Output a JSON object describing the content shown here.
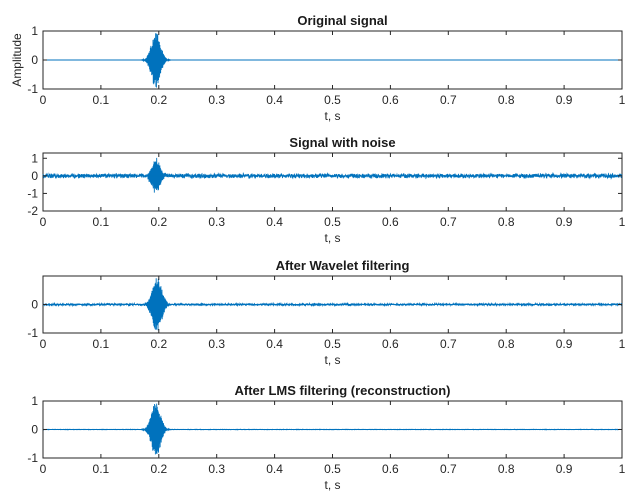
{
  "colors": {
    "signal": "#0072BD",
    "axes": "#262626",
    "background": "#ffffff"
  },
  "chart_data": [
    {
      "type": "line",
      "title": "Original signal",
      "xlabel": "t, s",
      "ylabel": "Amplitude",
      "xlim": [
        0,
        1
      ],
      "ylim": [
        -1,
        1
      ],
      "xticks": [
        "0",
        "0.1",
        "0.2",
        "0.3",
        "0.4",
        "0.5",
        "0.6",
        "0.7",
        "0.8",
        "0.9",
        "1"
      ],
      "yticks": [
        "1",
        "0",
        "-1"
      ],
      "ytick_values": [
        1,
        0,
        -1
      ],
      "burst": {
        "center": 0.195,
        "width": 0.016,
        "amplitude": 0.98
      },
      "noise_amplitude": 0.0
    },
    {
      "type": "line",
      "title": "Signal with noise",
      "xlabel": "t, s",
      "ylabel": "",
      "xlim": [
        0,
        1
      ],
      "ylim": [
        -2,
        1.3
      ],
      "xticks": [
        "0",
        "0.1",
        "0.2",
        "0.3",
        "0.4",
        "0.5",
        "0.6",
        "0.7",
        "0.8",
        "0.9",
        "1"
      ],
      "yticks": [
        "1",
        "0",
        "-1",
        "-2"
      ],
      "ytick_values": [
        1,
        0,
        -1,
        -2
      ],
      "burst": {
        "center": 0.195,
        "width": 0.016,
        "amplitude": 0.95
      },
      "noise_amplitude": 0.15
    },
    {
      "type": "line",
      "title": "After Wavelet filtering",
      "xlabel": "t, s",
      "ylabel": "",
      "xlim": [
        0,
        1
      ],
      "ylim": [
        -1,
        1
      ],
      "xticks": [
        "0",
        "0.1",
        "0.2",
        "0.3",
        "0.4",
        "0.5",
        "0.6",
        "0.7",
        "0.8",
        "0.9",
        "1"
      ],
      "yticks": [
        "0",
        "-1"
      ],
      "ytick_values": [
        0,
        -1
      ],
      "burst": {
        "center": 0.197,
        "width": 0.017,
        "amplitude": 0.97
      },
      "noise_amplitude": 0.04
    },
    {
      "type": "line",
      "title": "After LMS filtering (reconstruction)",
      "xlabel": "t, s",
      "ylabel": "",
      "xlim": [
        0,
        1
      ],
      "ylim": [
        -1,
        1
      ],
      "xticks": [
        "0",
        "0.1",
        "0.2",
        "0.3",
        "0.4",
        "0.5",
        "0.6",
        "0.7",
        "0.8",
        "0.9",
        "1"
      ],
      "yticks": [
        "1",
        "0",
        "-1"
      ],
      "ytick_values": [
        1,
        0,
        -1
      ],
      "burst": {
        "center": 0.195,
        "width": 0.016,
        "amplitude": 0.98
      },
      "noise_amplitude": 0.01
    }
  ]
}
